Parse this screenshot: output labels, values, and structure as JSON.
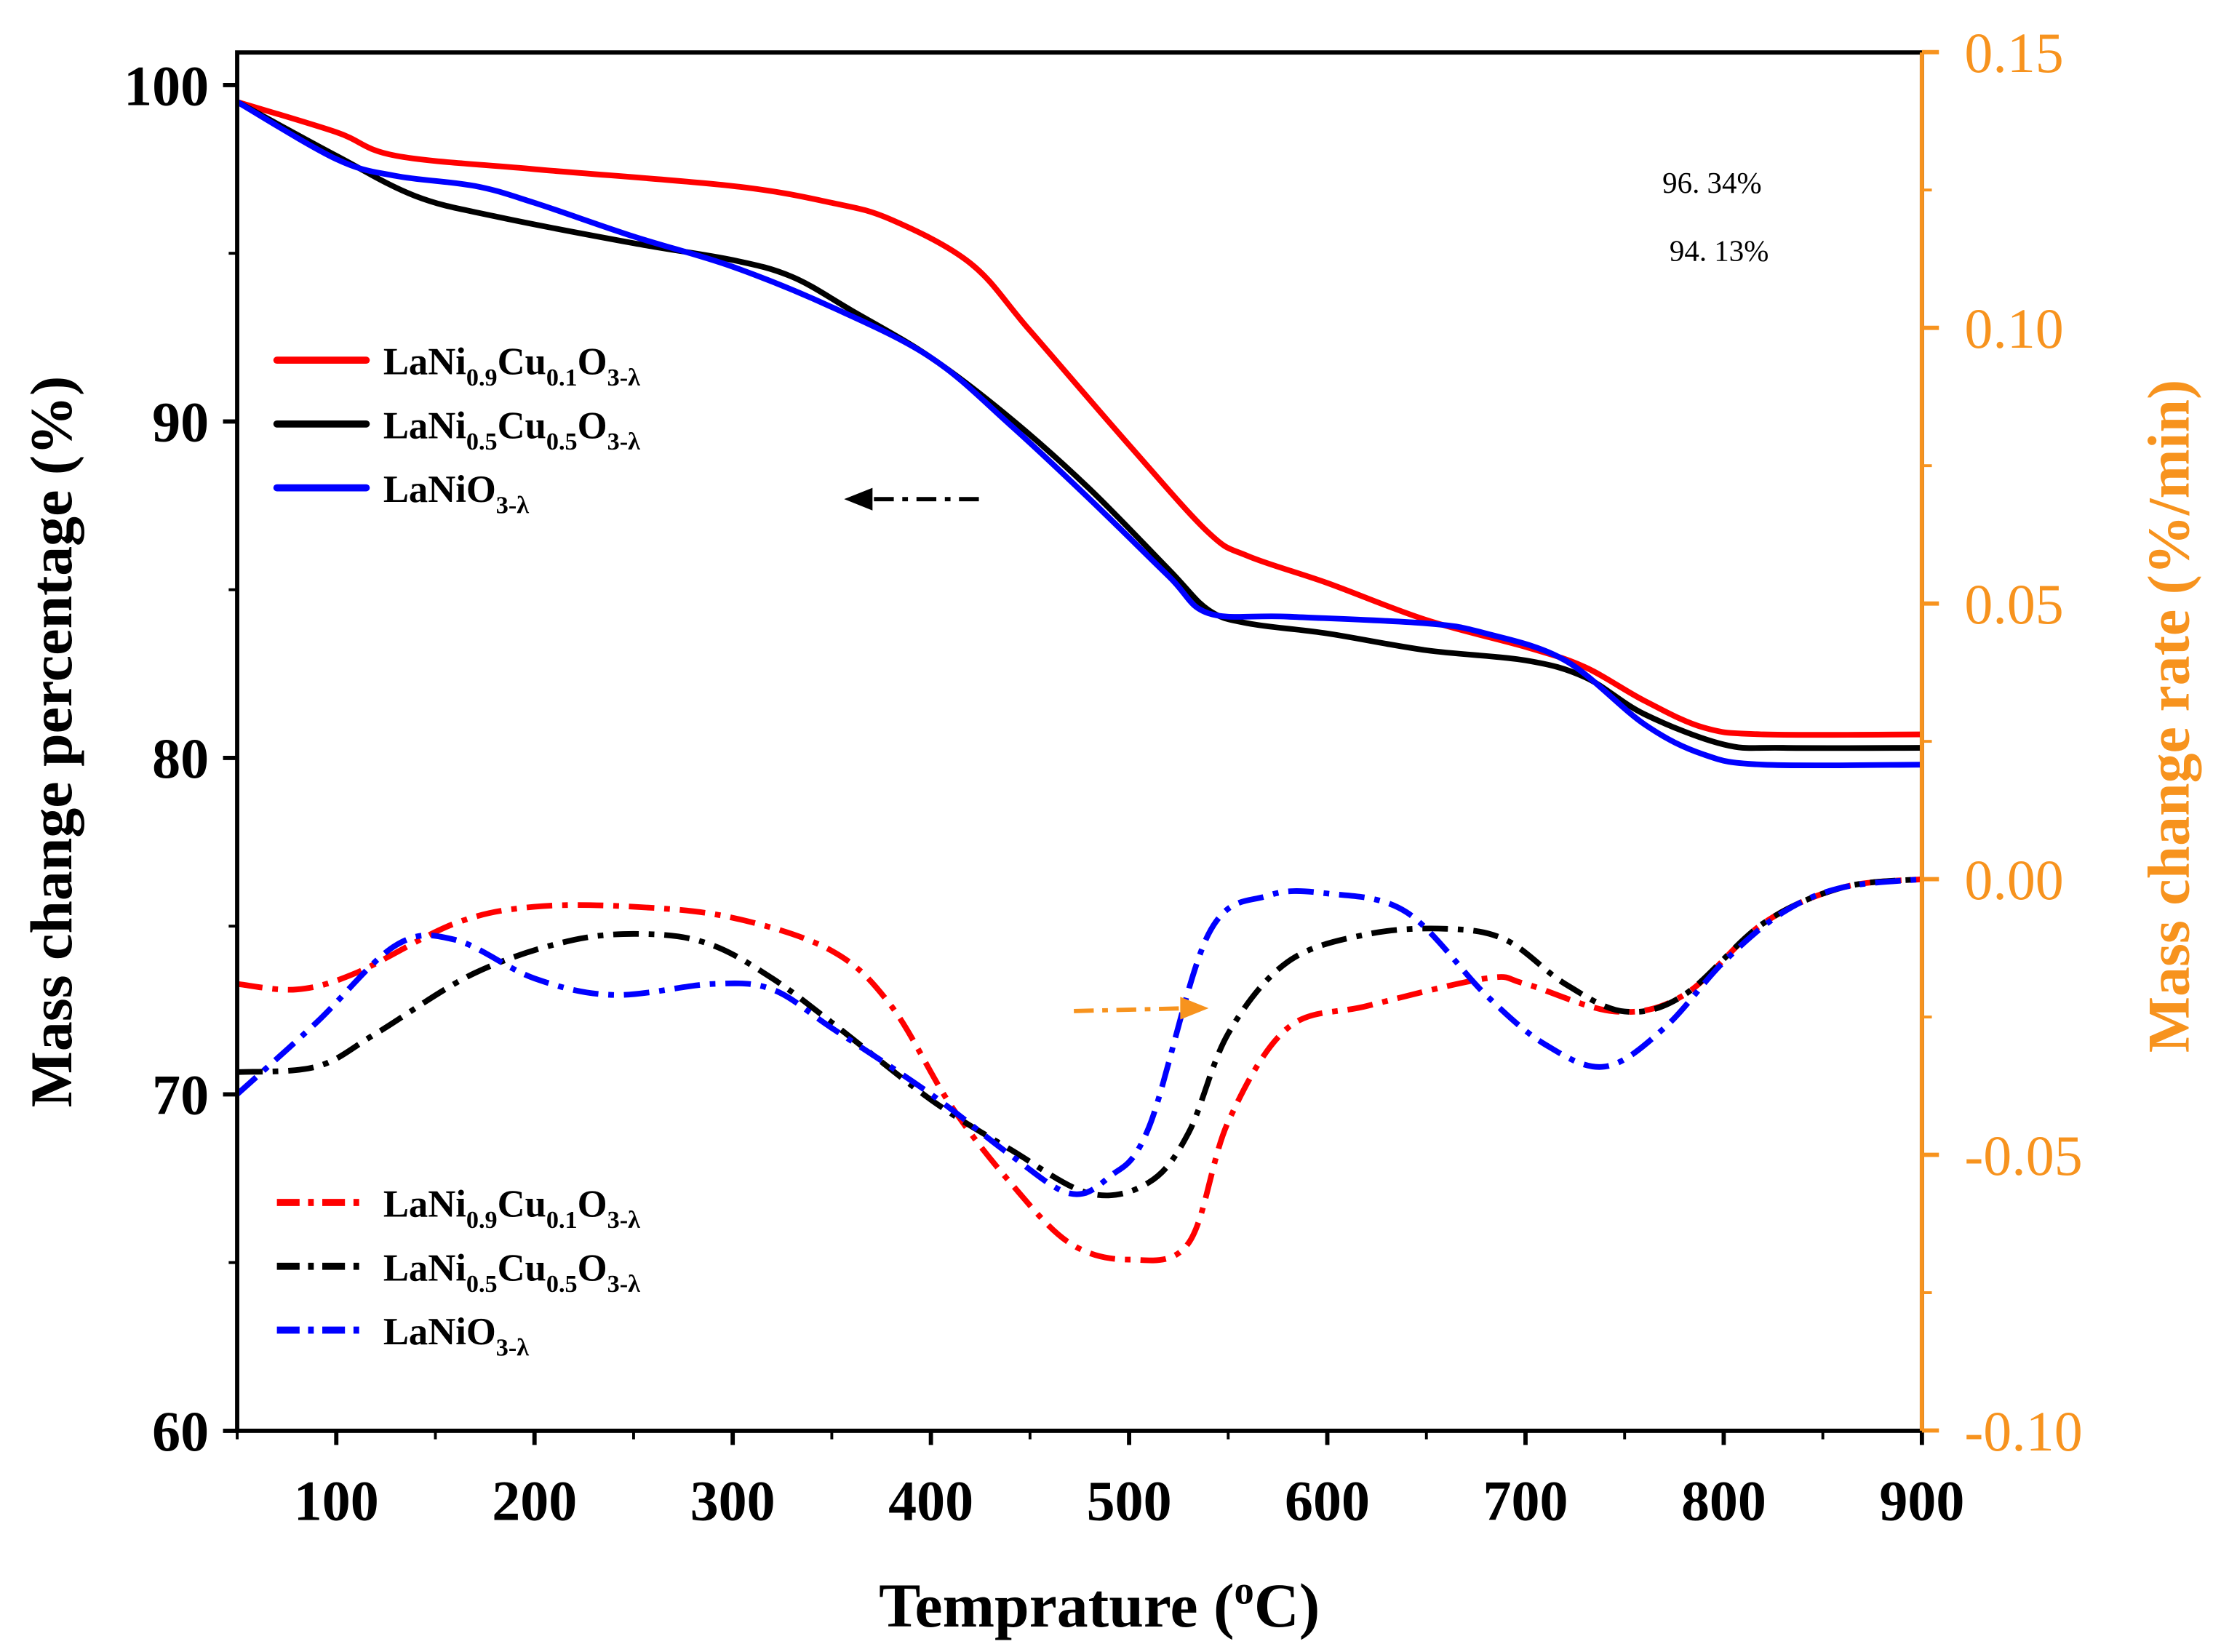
{
  "chart_data": {
    "type": "line",
    "xlabel": "Temprature (oC)",
    "xlabel_parts": [
      {
        "t": "Temprature ("
      },
      {
        "t": "o",
        "sup": true
      },
      {
        "t": "C)"
      }
    ],
    "ylabel": "Mass change percentage (%)",
    "y2label": "Mass change rate (%/min)",
    "xlim": [
      50,
      900
    ],
    "ylim": [
      60,
      101
    ],
    "y2lim": [
      -0.1,
      0.15
    ],
    "xticks": [
      "100",
      "200",
      "300",
      "400",
      "500",
      "600",
      "700",
      "800",
      "900"
    ],
    "yticks": [
      "60",
      "70",
      "80",
      "90",
      "100"
    ],
    "y2ticks": [
      "-0.10",
      "-0.05",
      "0.00",
      "0.05",
      "0.10",
      "0.15"
    ],
    "grid": false,
    "colors": {
      "axis2": "#f7931e",
      "red": "#ff0000",
      "black": "#000000",
      "blue": "#0000ff"
    },
    "annotations": [
      "96. 34%",
      "94. 13%"
    ],
    "tg_series": [
      {
        "name": "LaNi0.9Cu0.1O3-λ",
        "color": "#ff0000",
        "parts": [
          {
            "t": "LaNi"
          },
          {
            "t": "0.9",
            "sub": true
          },
          {
            "t": "Cu"
          },
          {
            "t": "0.1",
            "sub": true
          },
          {
            "t": "O"
          },
          {
            "t": "3-λ",
            "sub": true
          }
        ],
        "x": [
          50,
          100,
          130,
          200,
          300,
          350,
          380,
          420,
          450,
          500,
          540,
          560,
          600,
          650,
          700,
          730,
          760,
          790,
          820,
          900
        ],
        "y": [
          99.5,
          98.6,
          97.9,
          97.5,
          97.0,
          96.5,
          96.0,
          94.7,
          92.7,
          89.3,
          86.7,
          86.0,
          85.2,
          84.1,
          83.3,
          82.7,
          81.7,
          80.9,
          80.7,
          80.7
        ]
      },
      {
        "name": "LaNi0.5Cu0.5O3-λ",
        "color": "#000000",
        "parts": [
          {
            "t": "LaNi"
          },
          {
            "t": "0.5",
            "sub": true
          },
          {
            "t": "Cu"
          },
          {
            "t": "0.5",
            "sub": true
          },
          {
            "t": "O"
          },
          {
            "t": "3-λ",
            "sub": true
          }
        ],
        "x": [
          50,
          100,
          140,
          180,
          250,
          300,
          330,
          360,
          400,
          440,
          480,
          520,
          540,
          560,
          600,
          650,
          700,
          730,
          760,
          800,
          830,
          900
        ],
        "y": [
          99.5,
          97.9,
          96.7,
          96.1,
          95.3,
          94.8,
          94.3,
          93.3,
          91.9,
          90.1,
          88.0,
          85.6,
          84.4,
          84.0,
          83.7,
          83.2,
          82.9,
          82.4,
          81.3,
          80.4,
          80.3,
          80.3
        ]
      },
      {
        "name": "LaNiO3-λ",
        "color": "#0000ff",
        "parts": [
          {
            "t": "LaNiO"
          },
          {
            "t": "3-λ",
            "sub": true
          }
        ],
        "x": [
          50,
          100,
          130,
          170,
          200,
          250,
          300,
          350,
          400,
          440,
          480,
          520,
          540,
          580,
          650,
          680,
          720,
          760,
          790,
          820,
          900
        ],
        "y": [
          99.5,
          97.8,
          97.3,
          97.0,
          96.5,
          95.5,
          94.6,
          93.4,
          91.9,
          89.9,
          87.7,
          85.4,
          84.3,
          84.2,
          84.0,
          83.7,
          82.9,
          81.0,
          80.1,
          79.8,
          79.8
        ]
      }
    ],
    "dtg_series": [
      {
        "name": "LaNi0.9Cu0.1O3-λ",
        "color": "#ff0000",
        "parts": [
          {
            "t": "LaNi"
          },
          {
            "t": "0.9",
            "sub": true
          },
          {
            "t": "Cu"
          },
          {
            "t": "0.1",
            "sub": true
          },
          {
            "t": "O"
          },
          {
            "t": "3-λ",
            "sub": true
          }
        ],
        "x": [
          50,
          80,
          110,
          160,
          200,
          250,
          300,
          350,
          380,
          410,
          440,
          470,
          500,
          530,
          550,
          580,
          620,
          680,
          700,
          745,
          780,
          820,
          860,
          900
        ],
        "y": [
          -0.019,
          -0.02,
          -0.017,
          -0.008,
          -0.005,
          -0.005,
          -0.007,
          -0.013,
          -0.023,
          -0.041,
          -0.055,
          -0.066,
          -0.069,
          -0.066,
          -0.044,
          -0.027,
          -0.023,
          -0.018,
          -0.019,
          -0.024,
          -0.021,
          -0.008,
          -0.0015,
          0
        ]
      },
      {
        "name": "LaNi0.5Cu0.5O3-λ",
        "color": "#000000",
        "parts": [
          {
            "t": "LaNi"
          },
          {
            "t": "0.5",
            "sub": true
          },
          {
            "t": "Cu"
          },
          {
            "t": "0.5",
            "sub": true
          },
          {
            "t": "O"
          },
          {
            "t": "3-λ",
            "sub": true
          }
        ],
        "x": [
          50,
          90,
          120,
          170,
          220,
          260,
          290,
          320,
          350,
          400,
          440,
          480,
          510,
          530,
          550,
          580,
          620,
          660,
          690,
          720,
          750,
          780,
          820,
          860,
          900
        ],
        "y": [
          -0.035,
          -0.034,
          -0.028,
          -0.017,
          -0.011,
          -0.01,
          -0.012,
          -0.018,
          -0.026,
          -0.04,
          -0.049,
          -0.057,
          -0.055,
          -0.046,
          -0.028,
          -0.015,
          -0.01,
          -0.009,
          -0.011,
          -0.019,
          -0.024,
          -0.021,
          -0.008,
          -0.0015,
          0
        ]
      },
      {
        "name": "LaNiO3-λ",
        "color": "#0000ff",
        "parts": [
          {
            "t": "LaNiO"
          },
          {
            "t": "3-λ",
            "sub": true
          }
        ],
        "x": [
          50,
          90,
          130,
          160,
          200,
          240,
          290,
          320,
          350,
          400,
          440,
          470,
          490,
          510,
          540,
          570,
          600,
          640,
          680,
          710,
          740,
          770,
          800,
          830,
          860,
          900
        ],
        "y": [
          -0.039,
          -0.026,
          -0.012,
          -0.011,
          -0.018,
          -0.021,
          -0.019,
          -0.02,
          -0.027,
          -0.039,
          -0.05,
          -0.057,
          -0.054,
          -0.045,
          -0.01,
          -0.003,
          -0.0026,
          -0.006,
          -0.021,
          -0.03,
          -0.034,
          -0.027,
          -0.015,
          -0.006,
          -0.0015,
          0
        ]
      }
    ]
  }
}
